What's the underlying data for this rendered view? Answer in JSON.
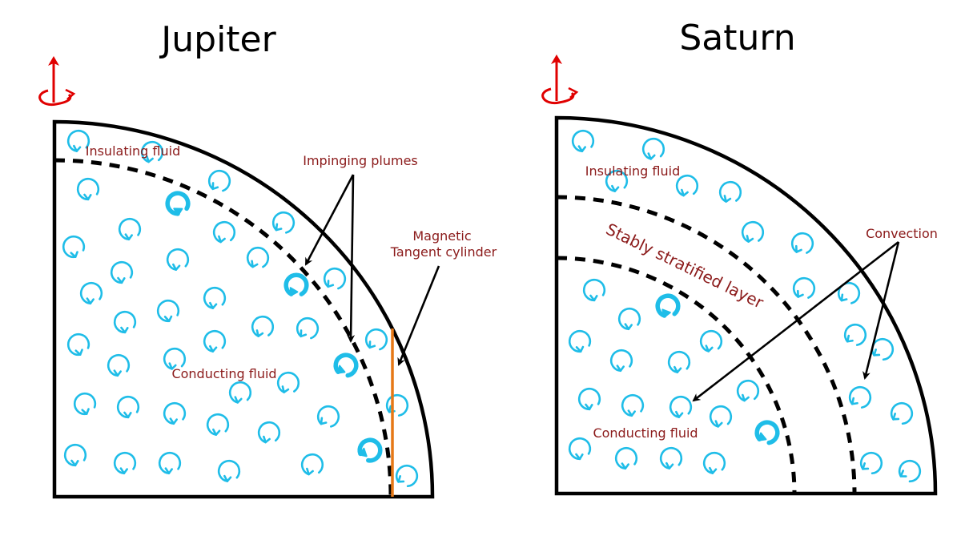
{
  "colors": {
    "label": "#8b1a1a",
    "swirl": "#1fbde8",
    "outline": "#000000",
    "axis_arrow": "#e00000",
    "tangent_cylinder": "#e67817"
  },
  "icons": {
    "rotation_axis": "rotation-axis-icon",
    "swirl": "convection-swirl-icon"
  },
  "jupiter": {
    "title": "Jupiter",
    "labels": {
      "insulating": "Insulating fluid",
      "conducting": "Conducting fluid",
      "plumes": "Impinging plumes",
      "tangent_line1": "Magnetic",
      "tangent_line2": "Tangent cylinder"
    }
  },
  "saturn": {
    "title": "Saturn",
    "labels": {
      "insulating": "Insulating fluid",
      "stratified": "Stably stratified layer",
      "convection": "Convection",
      "conducting": "Conducting fluid"
    }
  }
}
